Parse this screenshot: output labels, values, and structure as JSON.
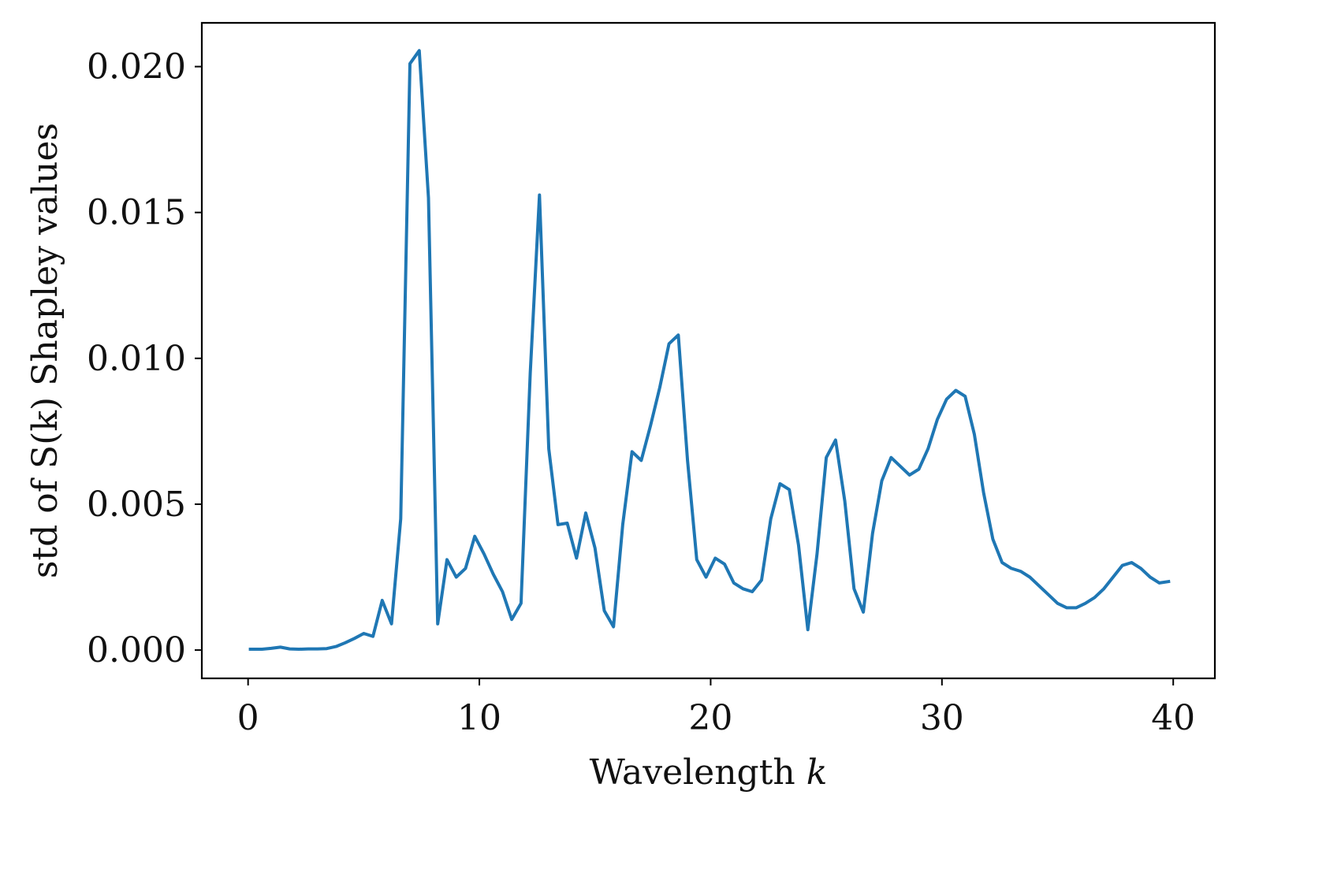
{
  "chart_data": {
    "type": "line",
    "title": "",
    "xlabel": "Wavelength ",
    "xlabel_var": "k",
    "ylabel": "std of S(k) Shapley values",
    "xlim": [
      -2.0,
      41.8
    ],
    "ylim": [
      -0.00097,
      0.0215
    ],
    "x_ticks": [
      0,
      10,
      20,
      30,
      40
    ],
    "x_tick_labels": [
      "0",
      "10",
      "20",
      "30",
      "40"
    ],
    "y_ticks": [
      0.0,
      0.005,
      0.01,
      0.015,
      0.02
    ],
    "y_tick_labels": [
      "0.000",
      "0.005",
      "0.010",
      "0.015",
      "0.020"
    ],
    "grid": false,
    "series": [
      {
        "color": "#1f77b4",
        "x": [
          0.1,
          0.6,
          1.0,
          1.4,
          1.8,
          2.2,
          2.6,
          3.0,
          3.4,
          3.8,
          4.2,
          4.6,
          5.0,
          5.4,
          5.8,
          6.2,
          6.6,
          7.0,
          7.4,
          7.8,
          8.2,
          8.6,
          9.0,
          9.4,
          9.8,
          10.2,
          10.6,
          11.0,
          11.4,
          11.8,
          12.2,
          12.6,
          13.0,
          13.4,
          13.8,
          14.2,
          14.6,
          15.0,
          15.4,
          15.8,
          16.2,
          16.6,
          17.0,
          17.4,
          17.8,
          18.2,
          18.6,
          19.0,
          19.4,
          19.8,
          20.2,
          20.6,
          21.0,
          21.4,
          21.8,
          22.2,
          22.6,
          23.0,
          23.4,
          23.8,
          24.2,
          24.6,
          25.0,
          25.4,
          25.8,
          26.2,
          26.6,
          27.0,
          27.4,
          27.8,
          28.2,
          28.6,
          29.0,
          29.4,
          29.8,
          30.2,
          30.6,
          31.0,
          31.4,
          31.8,
          32.2,
          32.6,
          33.0,
          33.4,
          33.8,
          34.2,
          34.6,
          35.0,
          35.4,
          35.8,
          36.2,
          36.6,
          37.0,
          37.4,
          37.8,
          38.2,
          38.6,
          39.0,
          39.4,
          39.8
        ],
        "y": [
          3e-05,
          3e-05,
          6e-05,
          0.0001,
          4e-05,
          3e-05,
          4e-05,
          4e-05,
          5e-05,
          0.00012,
          0.00025,
          0.0004,
          0.00057,
          0.00047,
          0.0017,
          0.0009,
          0.0045,
          0.0201,
          0.02055,
          0.0155,
          0.0009,
          0.0031,
          0.0025,
          0.0028,
          0.0039,
          0.0033,
          0.0026,
          0.002,
          0.00105,
          0.0016,
          0.0095,
          0.0156,
          0.0069,
          0.0043,
          0.00435,
          0.00315,
          0.0047,
          0.0035,
          0.00135,
          0.0008,
          0.0043,
          0.0068,
          0.0065,
          0.0077,
          0.009,
          0.0105,
          0.0108,
          0.0065,
          0.0031,
          0.0025,
          0.00315,
          0.00295,
          0.0023,
          0.0021,
          0.002,
          0.0024,
          0.0045,
          0.0057,
          0.0055,
          0.0036,
          0.0007,
          0.0033,
          0.0066,
          0.0072,
          0.0051,
          0.0021,
          0.0013,
          0.004,
          0.0058,
          0.0066,
          0.0063,
          0.006,
          0.0062,
          0.0069,
          0.0079,
          0.0086,
          0.0089,
          0.0087,
          0.0074,
          0.0054,
          0.0038,
          0.003,
          0.0028,
          0.0027,
          0.0025,
          0.0022,
          0.0019,
          0.0016,
          0.00145,
          0.00145,
          0.0016,
          0.0018,
          0.0021,
          0.0025,
          0.0029,
          0.003,
          0.0028,
          0.0025,
          0.0023,
          0.00235
        ]
      }
    ]
  }
}
